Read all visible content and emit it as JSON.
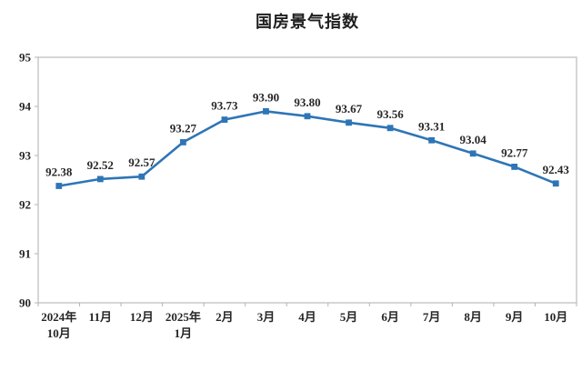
{
  "title": "国房景气指数",
  "chart_data": {
    "type": "line",
    "categories": [
      {
        "label": "2024年",
        "sub": "10月"
      },
      {
        "label": "11月",
        "sub": ""
      },
      {
        "label": "12月",
        "sub": ""
      },
      {
        "label": "2025年",
        "sub": "1月"
      },
      {
        "label": "2月",
        "sub": ""
      },
      {
        "label": "3月",
        "sub": ""
      },
      {
        "label": "4月",
        "sub": ""
      },
      {
        "label": "5月",
        "sub": ""
      },
      {
        "label": "6月",
        "sub": ""
      },
      {
        "label": "7月",
        "sub": ""
      },
      {
        "label": "8月",
        "sub": ""
      },
      {
        "label": "9月",
        "sub": ""
      },
      {
        "label": "10月",
        "sub": ""
      }
    ],
    "values": [
      92.38,
      92.52,
      92.57,
      93.27,
      93.73,
      93.9,
      93.8,
      93.67,
      93.56,
      93.31,
      93.04,
      92.77,
      92.43
    ],
    "data_labels": [
      "92.38",
      "92.52",
      "92.57",
      "93.27",
      "93.73",
      "93.90",
      "93.80",
      "93.67",
      "93.56",
      "93.31",
      "93.04",
      "92.77",
      "92.43"
    ],
    "title": "国房景气指数",
    "xlabel": "",
    "ylabel": "",
    "ylim": [
      90,
      95
    ],
    "yticks": [
      90,
      91,
      92,
      93,
      94,
      95
    ],
    "grid": false,
    "legend_position": "none",
    "line_color": "#2e75b6",
    "marker_color": "#2e75b6",
    "axis_border_color": "#c9c9c9",
    "tick_color": "#b3b3b3",
    "text_color": "#262626"
  }
}
